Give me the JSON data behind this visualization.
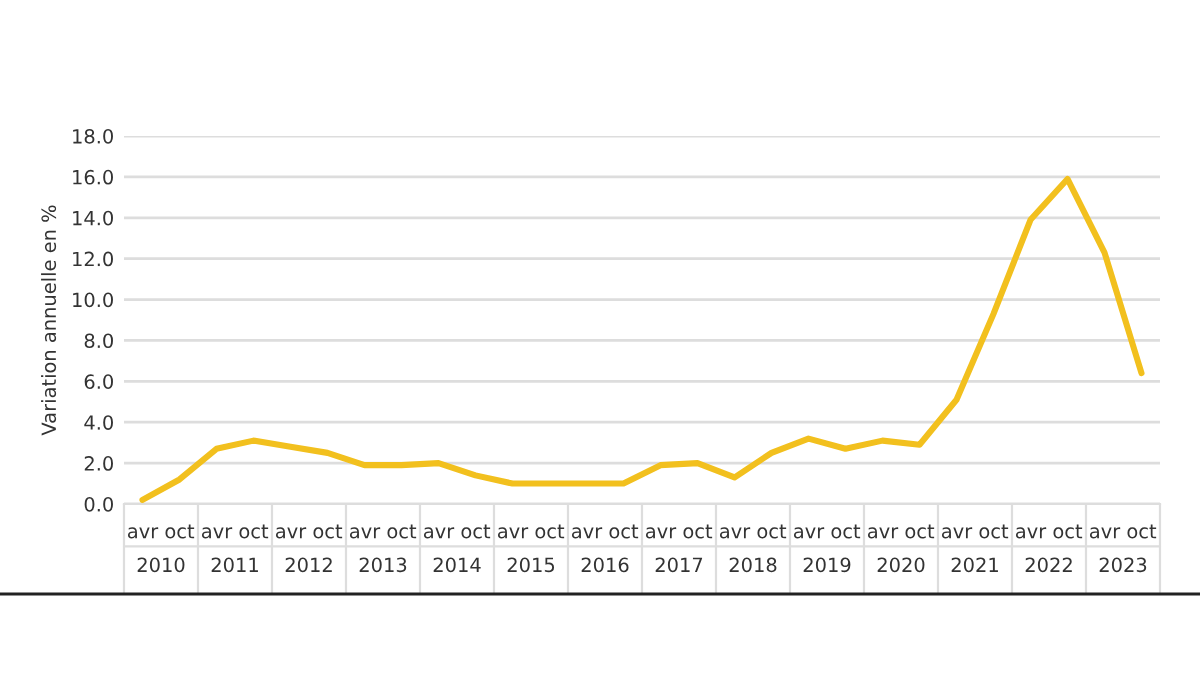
{
  "chart_data": {
    "type": "line",
    "ylabel": "Variation annuelle en %",
    "categories": [
      "avr",
      "oct",
      "avr",
      "oct",
      "avr",
      "oct",
      "avr",
      "oct",
      "avr",
      "oct",
      "avr",
      "oct",
      "avr",
      "oct",
      "avr",
      "oct",
      "avr",
      "oct",
      "avr",
      "oct",
      "avr",
      "oct",
      "avr",
      "oct",
      "avr",
      "oct",
      "avr",
      "oct"
    ],
    "series": [
      {
        "color": "#f2c01e",
        "values": [
          0.2,
          1.2,
          2.7,
          3.1,
          2.8,
          2.5,
          1.9,
          1.9,
          2.0,
          1.4,
          1.0,
          1.0,
          1.0,
          1.0,
          1.9,
          2.0,
          1.3,
          2.5,
          3.2,
          2.7,
          3.1,
          2.9,
          5.1,
          9.3,
          13.9,
          15.9,
          12.3,
          6.4
        ]
      }
    ],
    "annotations": [
      "2010",
      "2011",
      "2012",
      "2013",
      "2014",
      "2015",
      "2016",
      "2017",
      "2018",
      "2019",
      "2020",
      "2021",
      "2022",
      "2023"
    ],
    "ylim": [
      0,
      18
    ],
    "yticks": [
      {
        "value": 0,
        "label": "0.0"
      },
      {
        "value": 2,
        "label": "2.0"
      },
      {
        "value": 4,
        "label": "4.0"
      },
      {
        "value": 6,
        "label": "6.0"
      },
      {
        "value": 8,
        "label": "8.0"
      },
      {
        "value": 10,
        "label": "10.0"
      },
      {
        "value": 12,
        "label": "12.0"
      },
      {
        "value": 14,
        "label": "14.0"
      },
      {
        "value": 16,
        "label": "16.0"
      },
      {
        "value": 18,
        "label": "18.0"
      }
    ],
    "grid": "y",
    "legend": false,
    "marker": "none",
    "line_style": "solid"
  }
}
